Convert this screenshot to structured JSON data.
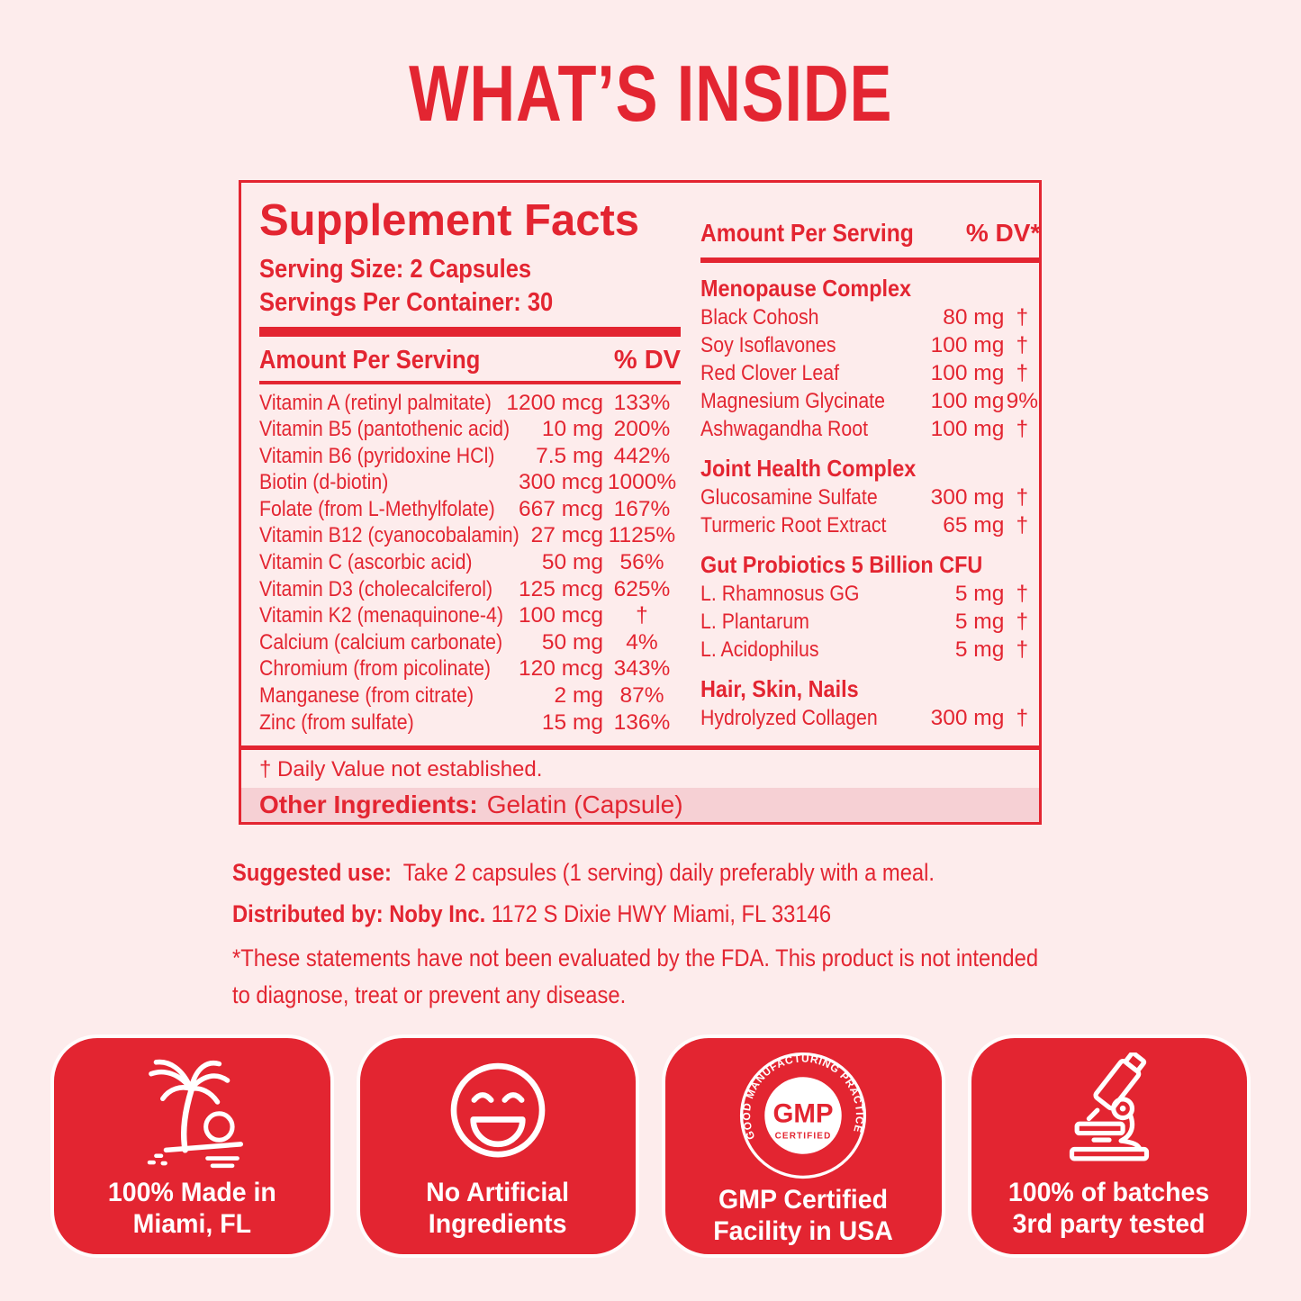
{
  "page": {
    "title": "WHAT’S INSIDE"
  },
  "colors": {
    "red": "#e32531",
    "background": "#fdecec",
    "band_pink": "#f6d0d4",
    "badge_text": "#ffffff"
  },
  "panel": {
    "title": "Supplement Facts",
    "serving_size": "Serving Size: 2 Capsules",
    "servings_per_container": "Servings Per Container: 30",
    "left_header": {
      "amount": "Amount Per Serving",
      "dv": "% DV"
    },
    "left_rows": [
      {
        "name": "Vitamin A (retinyl palmitate)",
        "amount": "1200 mcg",
        "dv": "133%"
      },
      {
        "name": "Vitamin B5 (pantothenic acid)",
        "amount": "10 mg",
        "dv": "200%"
      },
      {
        "name": "Vitamin B6 (pyridoxine HCl)",
        "amount": "7.5 mg",
        "dv": "442%"
      },
      {
        "name": "Biotin (d-biotin)",
        "amount": "300 mcg",
        "dv": "1000%"
      },
      {
        "name": "Folate (from L-Methylfolate)",
        "amount": "667 mcg",
        "dv": "167%"
      },
      {
        "name": "Vitamin B12 (cyanocobalamin)",
        "amount": "27 mcg",
        "dv": "1125%"
      },
      {
        "name": "Vitamin C (ascorbic acid)",
        "amount": "50 mg",
        "dv": "56%"
      },
      {
        "name": "Vitamin D3 (cholecalciferol)",
        "amount": "125 mcg",
        "dv": "625%"
      },
      {
        "name": "Vitamin K2 (menaquinone-4)",
        "amount": "100 mcg",
        "dv": "†"
      },
      {
        "name": "Calcium (calcium carbonate)",
        "amount": "50 mg",
        "dv": "4%"
      },
      {
        "name": "Chromium (from picolinate)",
        "amount": "120 mcg",
        "dv": "343%"
      },
      {
        "name": "Manganese (from citrate)",
        "amount": "2 mg",
        "dv": "87%"
      },
      {
        "name": "Zinc (from sulfate)",
        "amount": "15 mg",
        "dv": "136%"
      }
    ],
    "right_header": {
      "amount": "Amount Per Serving",
      "dv": "% DV*"
    },
    "right_sections": [
      {
        "title": "Menopause Complex",
        "rows": [
          {
            "name": "Black Cohosh",
            "amount": "80 mg",
            "dv": "†"
          },
          {
            "name": "Soy Isoflavones",
            "amount": "100 mg",
            "dv": "†"
          },
          {
            "name": "Red Clover Leaf",
            "amount": "100 mg",
            "dv": "†"
          },
          {
            "name": "Magnesium Glycinate",
            "amount": "100 mg",
            "dv": "9%"
          },
          {
            "name": "Ashwagandha Root",
            "amount": "100 mg",
            "dv": "†"
          }
        ]
      },
      {
        "title": "Joint Health Complex",
        "rows": [
          {
            "name": "Glucosamine Sulfate",
            "amount": "300 mg",
            "dv": "†"
          },
          {
            "name": "Turmeric Root Extract",
            "amount": "65 mg",
            "dv": "†"
          }
        ]
      },
      {
        "title": "Gut Probiotics 5 Billion CFU",
        "rows": [
          {
            "name": "L. Rhamnosus GG",
            "amount": "5 mg",
            "dv": "†"
          },
          {
            "name": "L. Plantarum",
            "amount": "5 mg",
            "dv": "†"
          },
          {
            "name": "L. Acidophilus",
            "amount": "5 mg",
            "dv": "†"
          }
        ]
      },
      {
        "title": "Hair, Skin, Nails",
        "rows": [
          {
            "name": "Hydrolyzed Collagen",
            "amount": "300 mg",
            "dv": "†"
          }
        ]
      }
    ],
    "footnote": "† Daily Value not established.",
    "other_ingredients_label": "Other Ingredients:",
    "other_ingredients_value": "Gelatin (Capsule)"
  },
  "notes": {
    "suggested_label": "Suggested use:",
    "suggested_text": "Take 2 capsules (1 serving) daily preferably with a meal.",
    "distributed_label": "Distributed by: Noby Inc.",
    "distributed_text": "1172 S Dixie HWY Miami, FL 33146",
    "disclaimer_line1": "*These statements have not been evaluated by the FDA. This product is not intended",
    "disclaimer_line2": "to diagnose, treat or prevent any disease."
  },
  "badges": [
    {
      "icon": "palm-tree-icon",
      "line1": "100% Made in",
      "line2": "Miami, FL"
    },
    {
      "icon": "laughing-face-icon",
      "line1": "No Artificial",
      "line2": "Ingredients"
    },
    {
      "icon": "gmp-seal-icon",
      "line1": "GMP Certified",
      "line2": "Facility in USA",
      "seal_center": "GMP",
      "seal_sub": "CERTIFIED",
      "seal_ring": "GOOD MANUFACTURING PRACTICE"
    },
    {
      "icon": "microscope-icon",
      "line1": "100% of batches",
      "line2": "3rd party tested"
    }
  ]
}
